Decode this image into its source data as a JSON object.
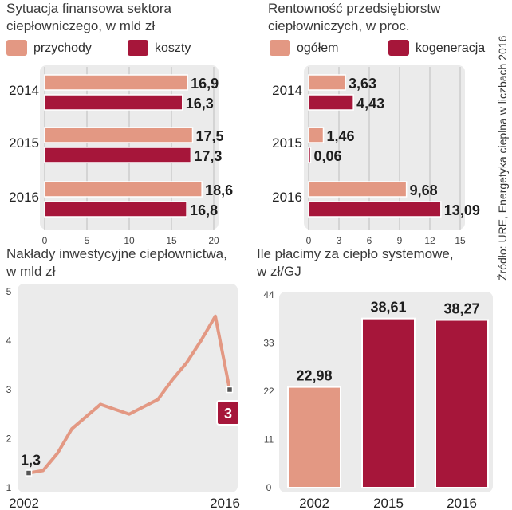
{
  "source_note": "Źródło: URE, Energetyka cieplna w liczbach 2016",
  "colors": {
    "light": "#e39883",
    "dark": "#a6163a",
    "panel": "#ebebeb",
    "grid": "#bdbdbd"
  },
  "chart_data": [
    {
      "id": "finanse",
      "type": "bar",
      "orientation": "horizontal",
      "title_lines": [
        "Sytuacja finansowa sektora",
        "ciepłowniczego, w mld zł"
      ],
      "categories": [
        "2014",
        "2015",
        "2016"
      ],
      "series": [
        {
          "name": "przychody",
          "values": [
            16.9,
            17.5,
            18.6
          ],
          "labels": [
            "16,9",
            "17,5",
            "18,6"
          ]
        },
        {
          "name": "koszty",
          "values": [
            16.3,
            17.3,
            16.8
          ],
          "labels": [
            "16,3",
            "17,3",
            "16,8"
          ]
        }
      ],
      "xlim": [
        0,
        20
      ],
      "xticks": [
        "0",
        "5",
        "10",
        "15",
        "20"
      ]
    },
    {
      "id": "rentownosc",
      "type": "bar",
      "orientation": "horizontal",
      "title_lines": [
        "Rentowność przedsiębiorstw",
        "ciepłowniczych, w proc."
      ],
      "categories": [
        "2014",
        "2015",
        "2016"
      ],
      "series": [
        {
          "name": "ogółem",
          "values": [
            3.63,
            1.46,
            9.68
          ],
          "labels": [
            "3,63",
            "1,46",
            "9,68"
          ]
        },
        {
          "name": "kogeneracja",
          "values": [
            4.43,
            0.06,
            13.09
          ],
          "labels": [
            "4,43",
            "0,06",
            "13,09"
          ]
        }
      ],
      "xlim": [
        0,
        15
      ],
      "xticks": [
        "0",
        "3",
        "6",
        "9",
        "12",
        "15"
      ]
    },
    {
      "id": "naklady",
      "type": "line",
      "title_lines": [
        "Nakłady inwestycyjne ciepłownictwa,",
        "w mld zł"
      ],
      "x": [
        2002,
        2003,
        2004,
        2005,
        2006,
        2007,
        2008,
        2009,
        2010,
        2011,
        2012,
        2013,
        2014,
        2015,
        2016
      ],
      "y": [
        1.3,
        1.35,
        1.7,
        2.2,
        2.45,
        2.7,
        2.6,
        2.5,
        2.65,
        2.8,
        3.2,
        3.55,
        4.0,
        4.5,
        3.0
      ],
      "start_label": "1,3",
      "end_label": "3",
      "xlabels": [
        "2002",
        "2016"
      ],
      "ylim": [
        1,
        5
      ],
      "yticks": [
        "1",
        "2",
        "3",
        "4",
        "5"
      ]
    },
    {
      "id": "cena",
      "type": "bar",
      "title_lines": [
        "Ile płacimy za ciepło systemowe,",
        "w zł/GJ"
      ],
      "categories": [
        "2002",
        "2015",
        "2016"
      ],
      "values": [
        22.98,
        38.61,
        38.27
      ],
      "labels": [
        "22,98",
        "38,61",
        "38,27"
      ],
      "ylim": [
        0,
        44
      ],
      "yticks": [
        "0",
        "11",
        "22",
        "33",
        "44"
      ]
    }
  ]
}
